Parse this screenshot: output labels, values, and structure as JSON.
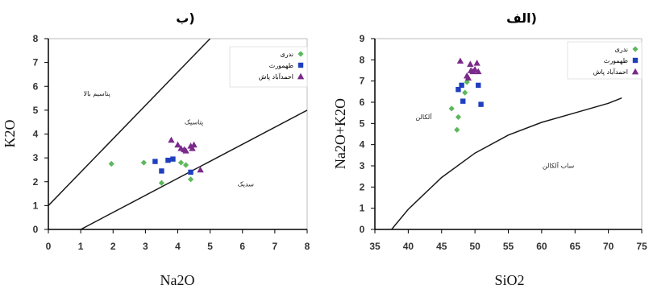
{
  "chart_data": [
    {
      "panel": "left",
      "type": "scatter",
      "title": "ب)",
      "xlabel": "Na2O",
      "ylabel": "K2O",
      "xlim": [
        0,
        8
      ],
      "ylim": [
        0,
        8
      ],
      "xticks": [
        "0",
        "1",
        "2",
        "3",
        "4",
        "5",
        "6",
        "7",
        "8"
      ],
      "yticks": [
        "0",
        "1",
        "2",
        "3",
        "4",
        "5",
        "6",
        "7",
        "8"
      ],
      "grid": false,
      "legend_position": "top-right",
      "boundaries": [
        {
          "name": "upper-line",
          "points": [
            [
              0,
              1.0
            ],
            [
              5.0,
              8.0
            ]
          ]
        },
        {
          "name": "lower-line",
          "points": [
            [
              1.0,
              0.0
            ],
            [
              8.0,
              5.0
            ]
          ]
        }
      ],
      "region_labels": [
        {
          "text": "پتاسیم بالا",
          "x": 1.5,
          "y": 5.6
        },
        {
          "text": "پتاسیک",
          "x": 4.5,
          "y": 4.4
        },
        {
          "text": "سدیک",
          "x": 6.1,
          "y": 1.8
        }
      ],
      "series": [
        {
          "name": "ندری",
          "marker": "diamond",
          "color": "#5cb85c",
          "points": [
            [
              1.95,
              2.75
            ],
            [
              2.95,
              2.8
            ],
            [
              3.5,
              1.95
            ],
            [
              4.1,
              2.8
            ],
            [
              4.25,
              2.7
            ],
            [
              4.4,
              2.1
            ]
          ]
        },
        {
          "name": "طهمورث",
          "marker": "square",
          "color": "#1f3fbf",
          "points": [
            [
              3.3,
              2.85
            ],
            [
              3.5,
              2.45
            ],
            [
              3.7,
              2.9
            ],
            [
              3.85,
              2.95
            ],
            [
              4.4,
              2.4
            ]
          ]
        },
        {
          "name": "احمدآباد پاش",
          "marker": "triangle",
          "color": "#7a2a8a",
          "points": [
            [
              3.8,
              3.75
            ],
            [
              4.0,
              3.55
            ],
            [
              4.1,
              3.4
            ],
            [
              4.2,
              3.35
            ],
            [
              4.25,
              3.3
            ],
            [
              4.4,
              3.5
            ],
            [
              4.45,
              3.4
            ],
            [
              4.5,
              3.55
            ],
            [
              4.7,
              2.5
            ]
          ]
        }
      ]
    },
    {
      "panel": "right",
      "type": "scatter",
      "title": "الف)",
      "xlabel": "SiO2",
      "ylabel": "Na2O+K2O",
      "xlim": [
        35,
        75
      ],
      "ylim": [
        0,
        9
      ],
      "xticks": [
        "35",
        "40",
        "45",
        "50",
        "55",
        "60",
        "65",
        "70",
        "75"
      ],
      "yticks": [
        "0",
        "1",
        "2",
        "3",
        "4",
        "5",
        "6",
        "7",
        "8",
        "9"
      ],
      "grid": false,
      "legend_position": "top-right",
      "boundaries": [
        {
          "name": "alkaline-subalkaline-curve",
          "points": [
            [
              37.5,
              0.0
            ],
            [
              40,
              0.95
            ],
            [
              45,
              2.45
            ],
            [
              50,
              3.6
            ],
            [
              55,
              4.45
            ],
            [
              60,
              5.05
            ],
            [
              65,
              5.5
            ],
            [
              70,
              5.95
            ],
            [
              72,
              6.2
            ]
          ]
        }
      ],
      "region_labels": [
        {
          "text": "آلکالن",
          "x": 42.3,
          "y": 5.2
        },
        {
          "text": "ساب آلکالن",
          "x": 62.5,
          "y": 2.9
        }
      ],
      "series": [
        {
          "name": "ندری",
          "marker": "diamond",
          "color": "#5cb85c",
          "points": [
            [
              46.5,
              5.7
            ],
            [
              47.3,
              4.7
            ],
            [
              47.5,
              5.3
            ],
            [
              48.5,
              6.45
            ],
            [
              48.8,
              6.95
            ]
          ]
        },
        {
          "name": "طهمورث",
          "marker": "square",
          "color": "#1f3fbf",
          "points": [
            [
              47.5,
              6.6
            ],
            [
              48.0,
              6.8
            ],
            [
              48.2,
              6.05
            ],
            [
              50.5,
              6.8
            ],
            [
              50.9,
              5.9
            ]
          ]
        },
        {
          "name": "احمدآباد پاش",
          "marker": "triangle",
          "color": "#7a2a8a",
          "points": [
            [
              47.8,
              7.95
            ],
            [
              48.8,
              7.25
            ],
            [
              49.0,
              7.15
            ],
            [
              49.3,
              7.8
            ],
            [
              49.4,
              7.5
            ],
            [
              49.7,
              7.45
            ],
            [
              50.0,
              7.55
            ],
            [
              50.3,
              7.85
            ],
            [
              50.5,
              7.45
            ]
          ]
        }
      ]
    }
  ]
}
